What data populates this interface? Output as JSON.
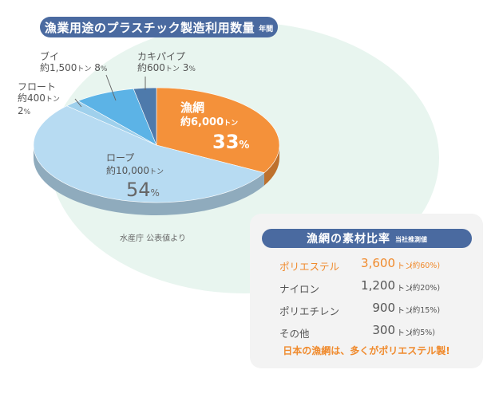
{
  "title": {
    "main": "漁業用途のプラスチック製造利用数量",
    "sub": "年間"
  },
  "chart_data": {
    "type": "pie",
    "title": "漁業用途のプラスチック製造利用数量",
    "slices": [
      {
        "name": "漁網",
        "amount": "約6,000",
        "unit": "トン",
        "percent": 33,
        "percent_label": "33",
        "color": "#f4913a"
      },
      {
        "name": "ロープ",
        "amount": "約10,000",
        "unit": "トン",
        "percent": 54,
        "percent_label": "54",
        "color": "#b7dbf2"
      },
      {
        "name": "フロート",
        "amount": "約400",
        "unit": "トン",
        "percent": 2,
        "percent_label": "2",
        "color": "#9fd0ec"
      },
      {
        "name": "ブイ",
        "amount": "約1,500",
        "unit": "トン",
        "percent": 8,
        "percent_label": "8",
        "color": "#5cb3e6"
      },
      {
        "name": "カキパイプ",
        "amount": "約600",
        "unit": "トン",
        "percent": 3,
        "percent_label": "3",
        "color": "#4e7aab"
      }
    ],
    "pct_symbol": "%",
    "source": "水産庁 公表値より"
  },
  "panel": {
    "title": "漁網の素材比率",
    "sub": "当社推測値",
    "rows": [
      {
        "material": "ポリエステル",
        "amount": "3,600",
        "unit": "トン",
        "share": "(約60%)",
        "highlight": true
      },
      {
        "material": "ナイロン",
        "amount": "1,200",
        "unit": "トン",
        "share": "(約20%)",
        "highlight": false
      },
      {
        "material": "ポリエチレン",
        "amount": "900",
        "unit": "トン",
        "share": "(約15%)",
        "highlight": false
      },
      {
        "material": "その他",
        "amount": "300",
        "unit": "トン",
        "share": "(約5%)",
        "highlight": false
      }
    ],
    "footnote": "日本の漁網は、多くがポリエステル製!"
  }
}
